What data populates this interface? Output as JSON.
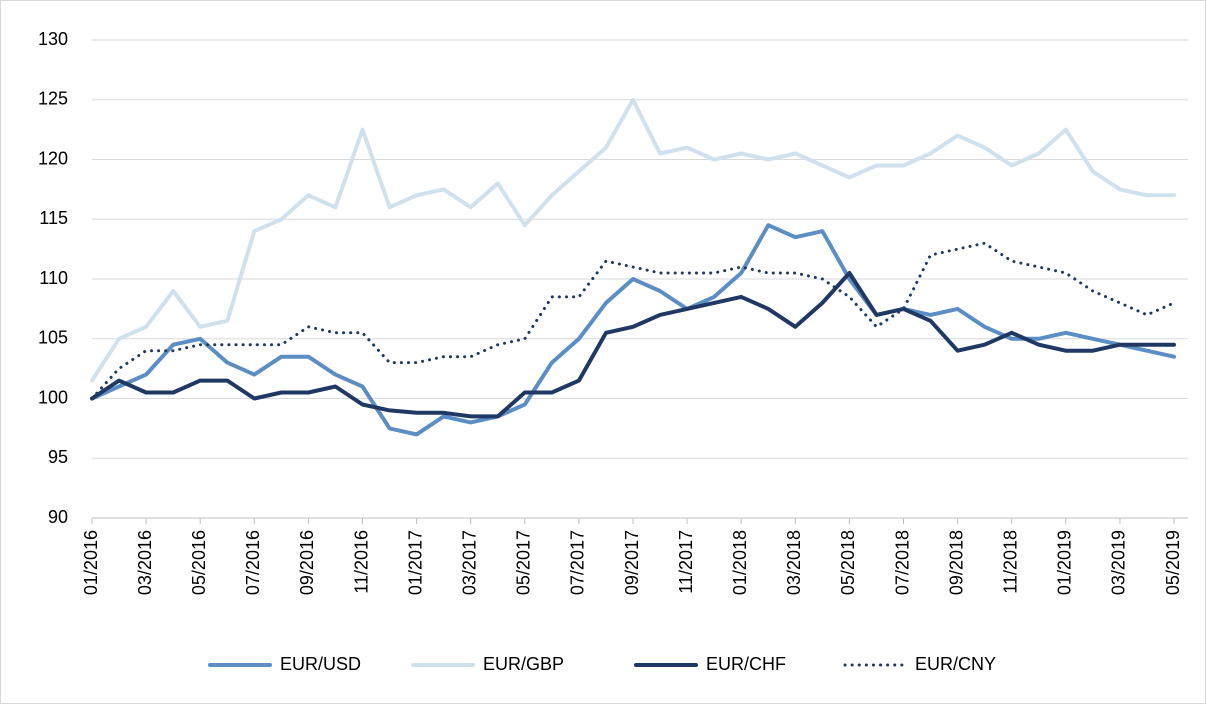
{
  "chart_data": {
    "type": "line",
    "x": [
      "01/2016",
      null,
      "03/2016",
      null,
      "05/2016",
      null,
      "07/2016",
      null,
      "09/2016",
      null,
      "11/2016",
      null,
      "01/2017",
      null,
      "03/2017",
      null,
      "05/2017",
      null,
      "07/2017",
      null,
      "09/2017",
      null,
      "11/2017",
      null,
      "01/2018",
      null,
      "03/2018",
      null,
      "05/2018",
      null,
      "07/2018",
      null,
      "09/2018",
      null,
      "11/2018",
      null,
      "01/2019",
      null,
      "03/2019",
      null,
      "05/2019"
    ],
    "series": [
      {
        "name": "EUR/USD",
        "color": "#5b8ec4",
        "style": "solid",
        "values": [
          100,
          101,
          102,
          104.5,
          105,
          103,
          102,
          103.5,
          103.5,
          102,
          101,
          97.5,
          97,
          98.5,
          98,
          98.5,
          99.5,
          103,
          105,
          108,
          110,
          109,
          107.5,
          108.5,
          110.5,
          114.5,
          113.5,
          114,
          110,
          107,
          107.5,
          107,
          107.5,
          106,
          105,
          105,
          105.5,
          105,
          104.5,
          104,
          103.5
        ]
      },
      {
        "name": "EUR/GBP",
        "color": "#d0e1ee",
        "style": "solid",
        "values": [
          101.5,
          105,
          106,
          109,
          106,
          106.5,
          114,
          115,
          117,
          116,
          122.5,
          116,
          117,
          117.5,
          116,
          118,
          114.5,
          117,
          119,
          121,
          125,
          120.5,
          121,
          120,
          120.5,
          120,
          120.5,
          119.5,
          118.5,
          119.5,
          119.5,
          120.5,
          122,
          121,
          119.5,
          120.5,
          122.5,
          119,
          117.5,
          117,
          117
        ]
      },
      {
        "name": "EUR/CHF",
        "color": "#1f3864",
        "style": "solid",
        "values": [
          100,
          101.5,
          100.5,
          100.5,
          101.5,
          101.5,
          100,
          100.5,
          100.5,
          101,
          99.5,
          99,
          98.8,
          98.8,
          98.5,
          98.5,
          100.5,
          100.5,
          101.5,
          105.5,
          106,
          107,
          107.5,
          108,
          108.5,
          107.5,
          106,
          108,
          110.5,
          107,
          107.5,
          106.5,
          104,
          104.5,
          105.5,
          104.5,
          104,
          104,
          104.5,
          104.5,
          104.5
        ]
      },
      {
        "name": "EUR/CNY",
        "color": "#1f3864",
        "style": "dotted",
        "values": [
          100,
          102.5,
          104,
          104,
          104.5,
          104.5,
          104.5,
          104.5,
          106,
          105.5,
          105.5,
          103,
          103,
          103.5,
          103.5,
          104.5,
          105,
          108.5,
          108.5,
          111.5,
          111,
          110.5,
          110.5,
          110.5,
          111,
          110.5,
          110.5,
          110,
          108.5,
          106,
          107.5,
          112,
          112.5,
          113,
          111.5,
          111,
          110.5,
          109,
          108,
          107,
          108
        ]
      }
    ],
    "ylim": [
      90,
      130
    ],
    "yticks": [
      90,
      95,
      100,
      105,
      110,
      115,
      120,
      125,
      130
    ],
    "grid": true,
    "legend": "bottom"
  }
}
